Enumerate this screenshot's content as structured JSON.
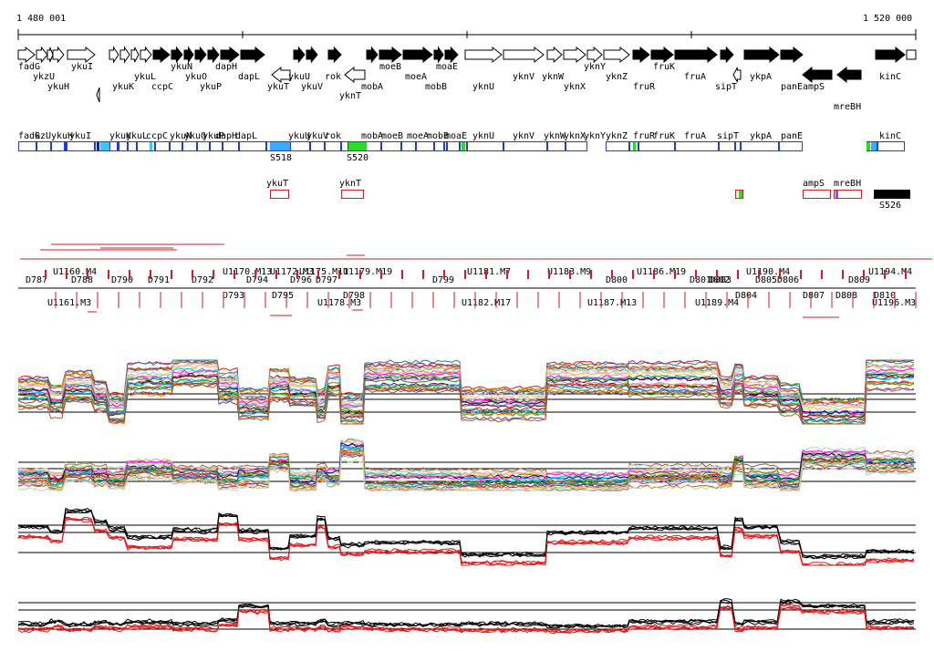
{
  "coords": {
    "start": "1 480 001",
    "end": "1 520 000"
  },
  "genes_top": [
    {
      "label": "fadG",
      "lp": 20,
      "lr": 0,
      "s": 20,
      "e": 38,
      "d": "r",
      "f": "w"
    },
    {
      "label": "ykzU",
      "lp": 36,
      "lr": 1,
      "s": 40,
      "e": 52,
      "d": "r",
      "f": "w"
    },
    {
      "label": "ykuH",
      "lp": 52,
      "lr": 2,
      "s": 52,
      "e": 58,
      "d": "r",
      "f": "w"
    },
    {
      "label": "ykuI",
      "lp": 78,
      "lr": 0,
      "s": 58,
      "e": 70,
      "d": "r",
      "f": "w"
    },
    {
      "label": "",
      "lp": 0,
      "lr": 0,
      "s": 74,
      "e": 104,
      "d": "r",
      "f": "w"
    },
    {
      "label": "ykuK",
      "lp": 123,
      "lr": 2,
      "s": 120,
      "e": 130,
      "d": "r",
      "f": "w"
    },
    {
      "label": "ykuL",
      "lp": 147,
      "lr": 1,
      "s": 132,
      "e": 142,
      "d": "r",
      "f": "w"
    },
    {
      "label": "",
      "lp": 0,
      "lr": 0,
      "s": 144,
      "e": 152,
      "d": "r",
      "f": "w"
    },
    {
      "label": "ccpC",
      "lp": 166,
      "lr": 2,
      "s": 154,
      "e": 166,
      "d": "r",
      "f": "w"
    },
    {
      "label": "ykuN",
      "lp": 187,
      "lr": 0,
      "s": 168,
      "e": 186,
      "d": "r",
      "f": "b"
    },
    {
      "label": "",
      "lp": 0,
      "lr": 0,
      "s": 188,
      "e": 200,
      "d": "r",
      "f": "b"
    },
    {
      "label": "ykuO",
      "lp": 203,
      "lr": 1,
      "s": 202,
      "e": 212,
      "d": "r",
      "f": "b"
    },
    {
      "label": "ykuP",
      "lp": 219,
      "lr": 2,
      "s": 214,
      "e": 226,
      "d": "r",
      "f": "b"
    },
    {
      "label": "dapH",
      "lp": 236,
      "lr": 0,
      "s": 228,
      "e": 240,
      "d": "r",
      "f": "b"
    },
    {
      "label": "",
      "lp": 0,
      "lr": 0,
      "s": 242,
      "e": 262,
      "d": "r",
      "f": "b"
    },
    {
      "label": "dapL",
      "lp": 261,
      "lr": 1,
      "s": 264,
      "e": 290,
      "d": "r",
      "f": "b"
    },
    {
      "label": "ykuT",
      "lp": 293,
      "lr": 2,
      "s": 298,
      "e": 318,
      "d": "l",
      "f": "w",
      "y2": 1
    },
    {
      "label": "ykuU",
      "lp": 316,
      "lr": 1,
      "s": 322,
      "e": 334,
      "d": "r",
      "f": "b"
    },
    {
      "label": "ykuV",
      "lp": 330,
      "lr": 2,
      "s": 336,
      "e": 348,
      "d": "r",
      "f": "b"
    },
    {
      "label": "rok",
      "lp": 356,
      "lr": 1,
      "s": 360,
      "e": 374,
      "d": "r",
      "f": "b"
    },
    {
      "label": "yknT",
      "lp": 372,
      "lr": 3,
      "s": 378,
      "e": 400,
      "d": "l",
      "f": "w",
      "y2": 1
    },
    {
      "label": "mobA",
      "lp": 396,
      "lr": 2,
      "s": 402,
      "e": 414,
      "d": "r",
      "f": "b"
    },
    {
      "label": "moeB",
      "lp": 416,
      "lr": 0,
      "s": 416,
      "e": 440,
      "d": "r",
      "f": "b"
    },
    {
      "label": "moeA",
      "lp": 444,
      "lr": 1,
      "s": 442,
      "e": 474,
      "d": "r",
      "f": "b"
    },
    {
      "label": "mobB",
      "lp": 466,
      "lr": 2,
      "s": 476,
      "e": 486,
      "d": "r",
      "f": "b"
    },
    {
      "label": "moaE",
      "lp": 478,
      "lr": 0,
      "s": 488,
      "e": 502,
      "d": "r",
      "f": "b"
    },
    {
      "label": "yknU",
      "lp": 518,
      "lr": 2,
      "s": 510,
      "e": 550,
      "d": "r",
      "f": "w"
    },
    {
      "label": "yknV",
      "lp": 562,
      "lr": 1,
      "s": 552,
      "e": 596,
      "d": "r",
      "f": "w"
    },
    {
      "label": "yknW",
      "lp": 594,
      "lr": 1,
      "s": 600,
      "e": 616,
      "d": "r",
      "f": "w"
    },
    {
      "label": "yknX",
      "lp": 618,
      "lr": 2,
      "s": 618,
      "e": 642,
      "d": "r",
      "f": "w"
    },
    {
      "label": "yknY",
      "lp": 640,
      "lr": 0,
      "s": 644,
      "e": 660,
      "d": "r",
      "f": "w"
    },
    {
      "label": "yknZ",
      "lp": 664,
      "lr": 1,
      "s": 662,
      "e": 690,
      "d": "r",
      "f": "w"
    },
    {
      "label": "fruR",
      "lp": 694,
      "lr": 2,
      "s": 694,
      "e": 712,
      "d": "r",
      "f": "b"
    },
    {
      "label": "fruK",
      "lp": 716,
      "lr": 0,
      "s": 714,
      "e": 738,
      "d": "r",
      "f": "b"
    },
    {
      "label": "fruA",
      "lp": 750,
      "lr": 1,
      "s": 740,
      "e": 786,
      "d": "r",
      "f": "b"
    },
    {
      "label": "sipT",
      "lp": 784,
      "lr": 2,
      "s": 790,
      "e": 804,
      "d": "r",
      "f": "b"
    },
    {
      "label": "",
      "lp": 0,
      "lr": 0,
      "s": 804,
      "e": 812,
      "d": "l",
      "f": "w",
      "y2": 1
    },
    {
      "label": "ykpA",
      "lp": 822,
      "lr": 1,
      "s": 816,
      "e": 854,
      "d": "r",
      "f": "b"
    },
    {
      "label": "panE",
      "lp": 856,
      "lr": 2,
      "s": 856,
      "e": 880,
      "d": "r",
      "f": "b"
    },
    {
      "label": "ampS",
      "lp": 880,
      "lr": 2,
      "s": 880,
      "e": 912,
      "d": "l",
      "f": "b",
      "y2": 1
    },
    {
      "label": "",
      "lp": 0,
      "lr": 0,
      "s": 918,
      "e": 944,
      "d": "l",
      "f": "b",
      "y2": 1
    },
    {
      "label": "mreBH",
      "lp": 914,
      "lr": 4,
      "s": 0,
      "e": 0,
      "d": "n",
      "f": "w"
    },
    {
      "label": "kinC",
      "lp": 964,
      "lr": 1,
      "s": 960,
      "e": 992,
      "d": "r",
      "f": "b"
    },
    {
      "label": "",
      "lp": 0,
      "lr": 0,
      "s": 994,
      "e": 1004,
      "d": "n",
      "f": "w"
    }
  ],
  "track2_labels": [
    "fadG",
    "kzU",
    "ykuH",
    "ykuI",
    "ykuK",
    "ykuL",
    "ccpC",
    "ykuN",
    "ykuO",
    "ykuP",
    "dapH",
    "dapL",
    "ykuU",
    "ykuV",
    "rok",
    "mobA",
    "moeB",
    "moeA",
    "mobB",
    "moaE",
    "yknU",
    "yknV",
    "yknW",
    "yknX",
    "yknY",
    "yknZ",
    "fruR",
    "fruK",
    "fruA",
    "sipT",
    "ykpA",
    "panE",
    "kinC"
  ],
  "track2_extra": [
    "S518",
    "S520"
  ],
  "antisense": [
    "ykuT",
    "yknT",
    "ampS",
    "mreBH",
    "S526"
  ],
  "upper_segments": [
    "D787",
    "U1160.M4",
    "D788",
    "U1161.M3",
    "D790",
    "D791",
    "D792",
    "U1170.M13",
    "D793",
    "D794",
    "U1172.M3",
    "D795",
    "U1175.M11",
    "D796",
    "D797",
    "D798",
    "U1178.M3",
    "U1179.M19",
    "D799",
    "U1181.M7",
    "U1182.M17",
    "U1183.M9",
    "D800",
    "U1186.M19",
    "U1187.M13",
    "D801",
    "D802",
    "D803",
    "U1189.M4",
    "U1190.M4",
    "D804",
    "D805",
    "D806",
    "D807",
    "D808",
    "D809",
    "U1194.M4",
    "D810",
    "U1196.M3"
  ],
  "colors": {
    "gene_blue": "#1e3cdc",
    "antisense_red": "#d21e1e",
    "profile_red": "#e31a1c",
    "profile_black": "#000000"
  }
}
